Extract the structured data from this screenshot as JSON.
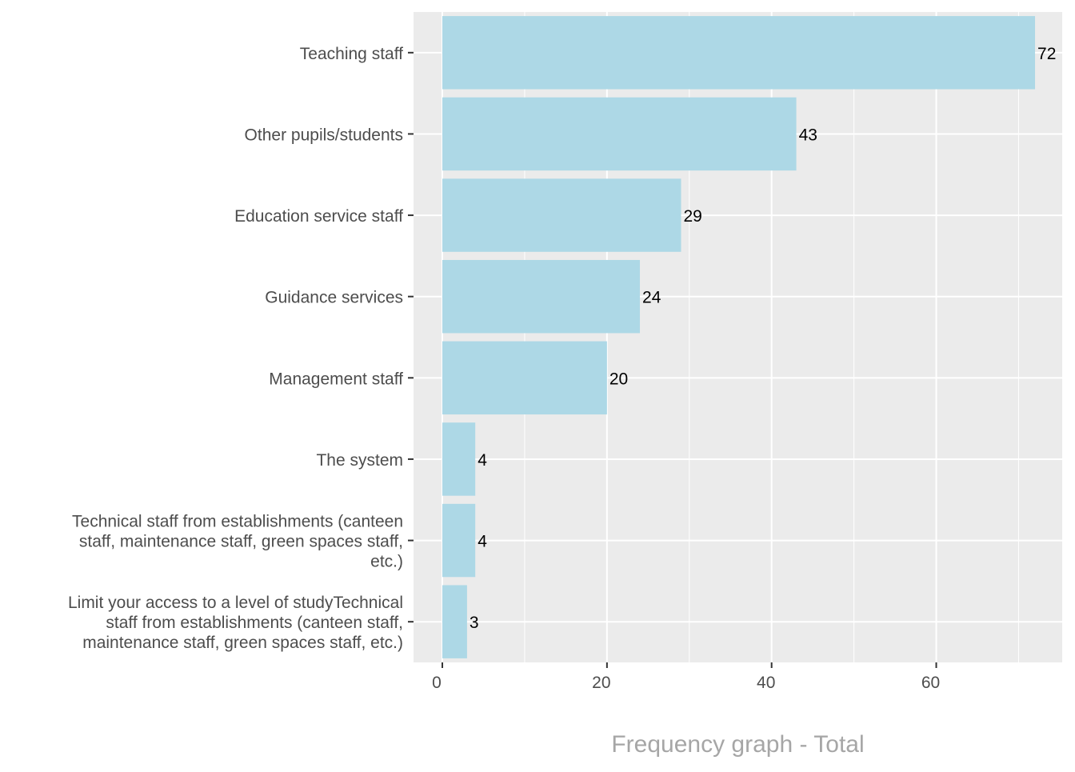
{
  "chart_data": {
    "type": "bar",
    "orientation": "horizontal",
    "categories": [
      "Teaching staff",
      "Other pupils/students",
      "Education service staff",
      "Guidance services",
      "Management staff",
      "The system",
      "Technical staff from establishments (canteen staff, maintenance staff, green spaces staff, etc.)",
      "Limit your access to a level of studyTechnical staff from establishments (canteen staff, maintenance staff, green spaces staff, etc.)"
    ],
    "category_lines": [
      [
        "Teaching staff"
      ],
      [
        "Other pupils/students"
      ],
      [
        "Education service staff"
      ],
      [
        "Guidance services"
      ],
      [
        "Management staff"
      ],
      [
        "The system"
      ],
      [
        "Technical staff from establishments (canteen",
        "staff, maintenance staff, green spaces staff,",
        "etc.)"
      ],
      [
        "Limit your access to a level of studyTechnical",
        "staff from establishments (canteen staff,",
        "maintenance staff, green spaces staff, etc.)"
      ]
    ],
    "values": [
      72,
      43,
      29,
      24,
      20,
      4,
      4,
      3
    ],
    "data_labels": [
      "72",
      "43",
      "29",
      "24",
      "20",
      "4",
      "4",
      "3"
    ],
    "title": "",
    "xlabel": "Frequency graph - Total",
    "ylabel": "",
    "xlim": [
      -3.5,
      75.3
    ],
    "x_ticks": [
      0,
      20,
      40,
      60
    ],
    "x_tick_labels": [
      "0",
      "20",
      "40",
      "60"
    ],
    "grid": true,
    "legend": "none",
    "colors": {
      "bar": "#add8e6",
      "panel": "#ebebeb",
      "grid": "#ffffff",
      "axis_title": "#a6a6a6",
      "tick_label": "#4d4d4d"
    }
  }
}
